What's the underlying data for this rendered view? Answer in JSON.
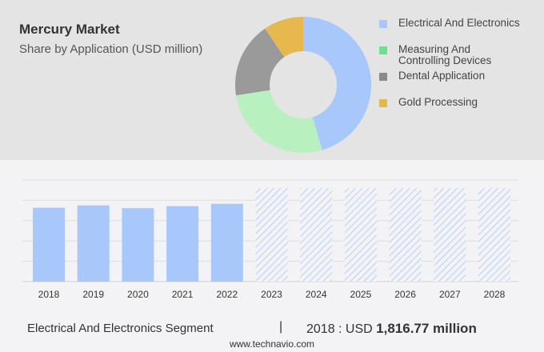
{
  "header": {
    "title": "Mercury Market",
    "subtitle": "Share by Application (USD million)"
  },
  "chart_data": [
    {
      "type": "pie",
      "donut": true,
      "categories": [
        "Electrical And Electronics",
        "Measuring And Controlling Devices",
        "Dental Application",
        "Gold Processing"
      ],
      "values": [
        45.5,
        27,
        18,
        9.5
      ],
      "colors": [
        "#a8c8fc",
        "#b8f0c0",
        "#9a9a9a",
        "#e6b84e"
      ],
      "legend_colors": [
        "#a8c8fc",
        "#6ee08e",
        "#8a8a8a",
        "#e2b84a"
      ],
      "legend": "right"
    },
    {
      "type": "bar",
      "categories": [
        "2018",
        "2019",
        "2020",
        "2021",
        "2022",
        "2023",
        "2024",
        "2025",
        "2026",
        "2027",
        "2028"
      ],
      "values": [
        1816.77,
        1876,
        1807,
        1857,
        1915,
        null,
        null,
        null,
        null,
        null,
        null
      ],
      "forecast": [
        "2023",
        "2024",
        "2025",
        "2026",
        "2027",
        "2028"
      ],
      "ylim": [
        0,
        2500
      ],
      "grid": true,
      "color": "#a8c8fc"
    }
  ],
  "footer": {
    "segment": "Electrical And Electronics Segment",
    "separator": "|",
    "year_label": "2018 : USD ",
    "value": "1,816.77 million",
    "url": "www.technavio.com"
  }
}
